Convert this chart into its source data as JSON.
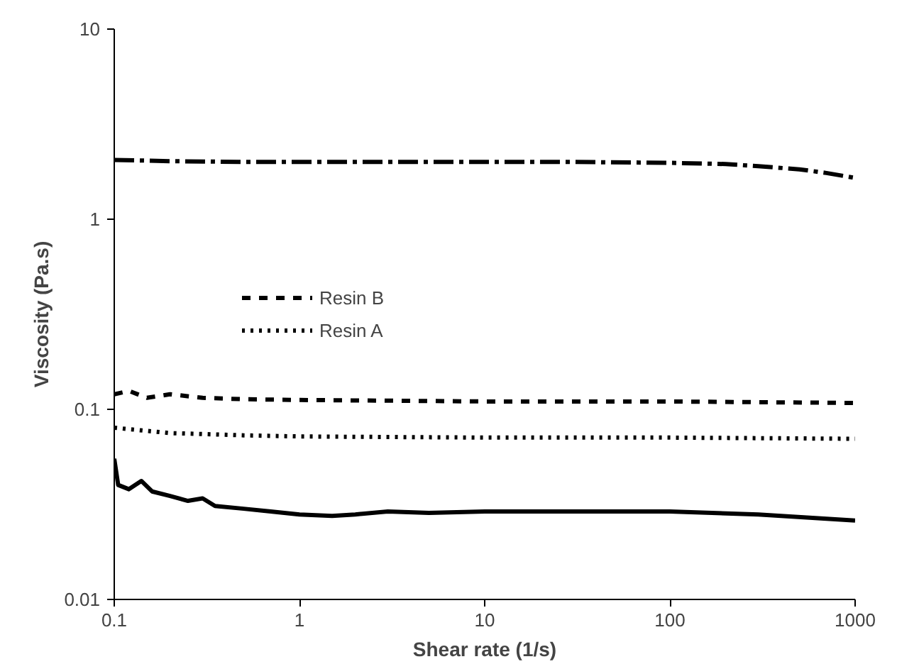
{
  "chart_data": {
    "type": "line",
    "xlabel": "Shear rate (1/s)",
    "ylabel": "Viscosity (Pa.s)",
    "log": "xy",
    "xlim": [
      0.1,
      1000
    ],
    "ylim": [
      0.01,
      10
    ],
    "xticks": [
      {
        "value": 0.1,
        "label": "0.1"
      },
      1,
      10,
      100,
      1000
    ],
    "yticks": [
      {
        "value": 0.01,
        "label": "0.01"
      },
      {
        "value": 0.1,
        "label": "0.1"
      },
      1,
      10
    ],
    "grid": false,
    "legend": "left",
    "marker": "none",
    "series": [
      {
        "color": "#000000",
        "line_style": "dashdot",
        "x": [
          0.1,
          0.2,
          0.5,
          1,
          3,
          10,
          30,
          100,
          200,
          300,
          500,
          700,
          1000
        ],
        "values": [
          2.05,
          2.02,
          2.0,
          2.0,
          2.0,
          2.0,
          2.0,
          1.98,
          1.95,
          1.9,
          1.83,
          1.75,
          1.65
        ]
      },
      {
        "name": "Resin B",
        "color": "#000000",
        "line_style": "dashed",
        "x": [
          0.1,
          0.12,
          0.15,
          0.2,
          0.3,
          0.5,
          1,
          10,
          100,
          1000
        ],
        "values": [
          0.12,
          0.125,
          0.115,
          0.12,
          0.115,
          0.113,
          0.112,
          0.11,
          0.11,
          0.108
        ]
      },
      {
        "name": "Resin A",
        "color": "#000000",
        "line_style": "dotted",
        "x": [
          0.1,
          0.2,
          0.5,
          1,
          10,
          100,
          1000
        ],
        "values": [
          0.08,
          0.075,
          0.073,
          0.072,
          0.071,
          0.071,
          0.07
        ]
      },
      {
        "color": "#000000",
        "line_style": "solid",
        "x": [
          0.1,
          0.105,
          0.12,
          0.14,
          0.16,
          0.2,
          0.25,
          0.3,
          0.35,
          0.5,
          0.7,
          1,
          1.5,
          2,
          3,
          5,
          10,
          50,
          100,
          300,
          1000
        ],
        "values": [
          0.055,
          0.04,
          0.038,
          0.042,
          0.037,
          0.035,
          0.033,
          0.034,
          0.031,
          0.03,
          0.029,
          0.028,
          0.0275,
          0.028,
          0.029,
          0.0285,
          0.029,
          0.029,
          0.029,
          0.028,
          0.026
        ]
      }
    ]
  }
}
